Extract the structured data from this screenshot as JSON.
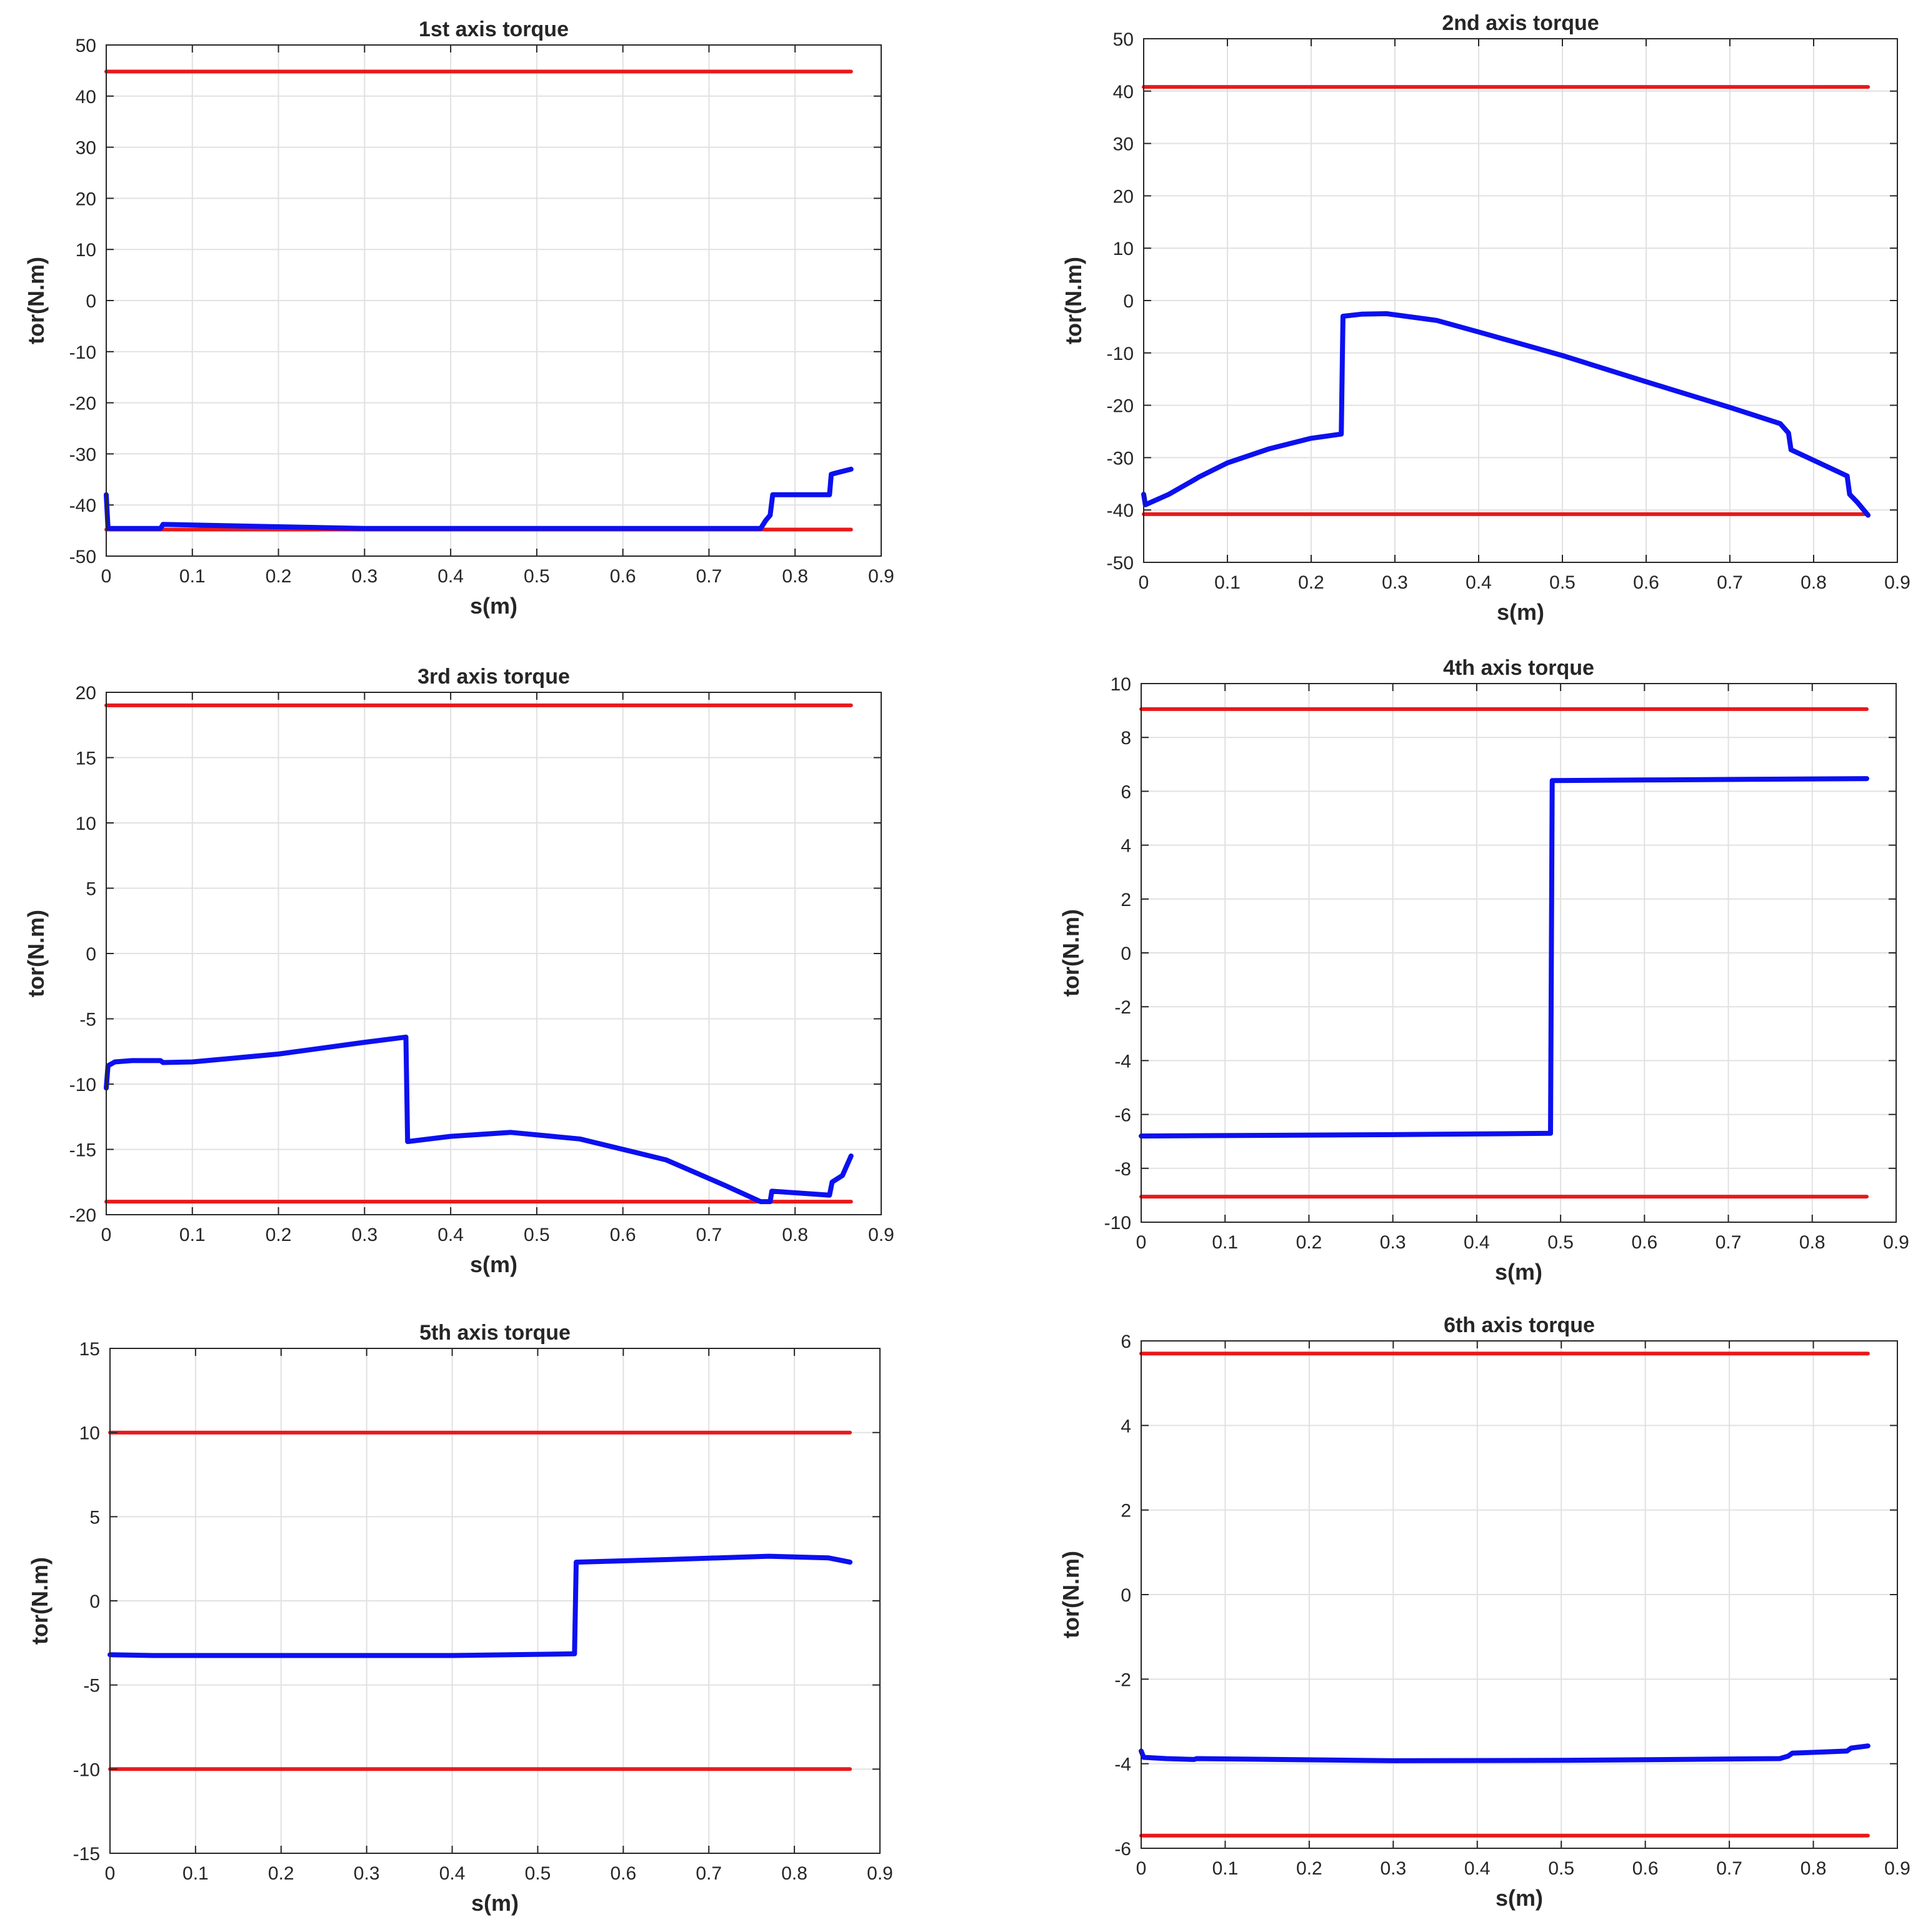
{
  "colors": {
    "limit": "#e8191b",
    "series": "#0c10f0",
    "grid": "#e1e1e1",
    "axis": "#262626"
  },
  "chart_data": [
    {
      "type": "line",
      "title": "1st axis torque",
      "xlabel": "s(m)",
      "ylabel": "tor(N.m)",
      "xlim": [
        0,
        0.9
      ],
      "ylim": [
        -50,
        50
      ],
      "xticks": [
        0,
        0.1,
        0.2,
        0.3,
        0.4,
        0.5,
        0.6,
        0.7,
        0.8,
        0.9
      ],
      "xtick_labels": [
        "0",
        "0.1",
        "0.2",
        "0.3",
        "0.4",
        "0.5",
        "0.6",
        "0.7",
        "0.8",
        "0.9"
      ],
      "yticks": [
        -50,
        -40,
        -30,
        -20,
        -10,
        0,
        10,
        20,
        30,
        40,
        50
      ],
      "ytick_labels": [
        "-50",
        "-40",
        "-30",
        "-20",
        "-10",
        "0",
        "10",
        "20",
        "30",
        "40",
        "50"
      ],
      "grid": true,
      "series": [
        {
          "name": "upper limit",
          "color": "#e8191b",
          "x": [
            0,
            0.865
          ],
          "y": [
            44.8,
            44.8
          ]
        },
        {
          "name": "lower limit",
          "color": "#e8191b",
          "x": [
            0,
            0.865
          ],
          "y": [
            -44.8,
            -44.8
          ]
        },
        {
          "name": "torque",
          "color": "#0c10f0",
          "x": [
            0,
            0.002,
            0.005,
            0.063,
            0.066,
            0.3,
            0.76,
            0.766,
            0.771,
            0.774,
            0.84,
            0.842,
            0.846,
            0.865
          ],
          "y": [
            -38,
            -44.5,
            -44.6,
            -44.6,
            -43.8,
            -44.6,
            -44.6,
            -43,
            -42,
            -38,
            -38,
            -34,
            -33.8,
            -33
          ]
        }
      ]
    },
    {
      "type": "line",
      "title": "2nd axis torque",
      "xlabel": "s(m)",
      "ylabel": "tor(N.m)",
      "xlim": [
        0,
        0.9
      ],
      "ylim": [
        -50,
        50
      ],
      "xticks": [
        0,
        0.1,
        0.2,
        0.3,
        0.4,
        0.5,
        0.6,
        0.7,
        0.8,
        0.9
      ],
      "xtick_labels": [
        "0",
        "0.1",
        "0.2",
        "0.3",
        "0.4",
        "0.5",
        "0.6",
        "0.7",
        "0.8",
        "0.9"
      ],
      "yticks": [
        -50,
        -40,
        -30,
        -20,
        -10,
        0,
        10,
        20,
        30,
        40,
        50
      ],
      "ytick_labels": [
        "-50",
        "-40",
        "-30",
        "-20",
        "-10",
        "0",
        "10",
        "20",
        "30",
        "40",
        "50"
      ],
      "grid": true,
      "series": [
        {
          "name": "upper limit",
          "color": "#e8191b",
          "x": [
            0,
            0.865
          ],
          "y": [
            40.8,
            40.8
          ]
        },
        {
          "name": "lower limit",
          "color": "#e8191b",
          "x": [
            0,
            0.865
          ],
          "y": [
            -40.8,
            -40.8
          ]
        },
        {
          "name": "torque",
          "color": "#0c10f0",
          "x": [
            0,
            0.002,
            0.03,
            0.063,
            0.066,
            0.1,
            0.15,
            0.2,
            0.236,
            0.238,
            0.26,
            0.29,
            0.35,
            0.4,
            0.5,
            0.6,
            0.7,
            0.76,
            0.77,
            0.773,
            0.84,
            0.843,
            0.852,
            0.865
          ],
          "y": [
            -37,
            -39,
            -37,
            -34,
            -33.7,
            -31,
            -28.3,
            -26.3,
            -25.5,
            -3,
            -2.6,
            -2.5,
            -3.8,
            -6,
            -10.5,
            -15.5,
            -20.4,
            -23.5,
            -25.3,
            -28.5,
            -33.5,
            -37,
            -38.5,
            -41
          ]
        }
      ]
    },
    {
      "type": "line",
      "title": "3rd axis torque",
      "xlabel": "s(m)",
      "ylabel": "tor(N.m)",
      "xlim": [
        0,
        0.9
      ],
      "ylim": [
        -20,
        20
      ],
      "xticks": [
        0,
        0.1,
        0.2,
        0.3,
        0.4,
        0.5,
        0.6,
        0.7,
        0.8,
        0.9
      ],
      "xtick_labels": [
        "0",
        "0.1",
        "0.2",
        "0.3",
        "0.4",
        "0.5",
        "0.6",
        "0.7",
        "0.8",
        "0.9"
      ],
      "yticks": [
        -20,
        -15,
        -10,
        -5,
        0,
        5,
        10,
        15,
        20
      ],
      "ytick_labels": [
        "-20",
        "-15",
        "-10",
        "-5",
        "0",
        "5",
        "10",
        "15",
        "20"
      ],
      "grid": true,
      "series": [
        {
          "name": "upper limit",
          "color": "#e8191b",
          "x": [
            0,
            0.865
          ],
          "y": [
            19,
            19
          ]
        },
        {
          "name": "lower limit",
          "color": "#e8191b",
          "x": [
            0,
            0.865
          ],
          "y": [
            -19,
            -19
          ]
        },
        {
          "name": "torque",
          "color": "#0c10f0",
          "x": [
            0,
            0.002,
            0.01,
            0.03,
            0.063,
            0.066,
            0.1,
            0.2,
            0.3,
            0.348,
            0.35,
            0.4,
            0.47,
            0.55,
            0.65,
            0.72,
            0.76,
            0.771,
            0.773,
            0.84,
            0.843,
            0.855,
            0.865
          ],
          "y": [
            -10.3,
            -8.6,
            -8.3,
            -8.2,
            -8.2,
            -8.35,
            -8.3,
            -7.7,
            -6.8,
            -6.4,
            -14.4,
            -14,
            -13.7,
            -14.2,
            -15.8,
            -17.8,
            -19,
            -19,
            -18.2,
            -18.5,
            -17.5,
            -17,
            -15.5
          ]
        }
      ]
    },
    {
      "type": "line",
      "title": "4th axis torque",
      "xlabel": "s(m)",
      "ylabel": "tor(N.m)",
      "xlim": [
        0,
        0.9
      ],
      "ylim": [
        -10,
        10
      ],
      "xticks": [
        0,
        0.1,
        0.2,
        0.3,
        0.4,
        0.5,
        0.6,
        0.7,
        0.8,
        0.9
      ],
      "xtick_labels": [
        "0",
        "0.1",
        "0.2",
        "0.3",
        "0.4",
        "0.5",
        "0.6",
        "0.7",
        "0.8",
        "0.9"
      ],
      "yticks": [
        -10,
        -8,
        -6,
        -4,
        -2,
        0,
        2,
        4,
        6,
        8,
        10
      ],
      "ytick_labels": [
        "-10",
        "-8",
        "-6",
        "-4",
        "-2",
        "0",
        "2",
        "4",
        "6",
        "8",
        "10"
      ],
      "grid": true,
      "series": [
        {
          "name": "upper limit",
          "color": "#e8191b",
          "x": [
            0,
            0.865
          ],
          "y": [
            9.05,
            9.05
          ]
        },
        {
          "name": "lower limit",
          "color": "#e8191b",
          "x": [
            0,
            0.865
          ],
          "y": [
            -9.05,
            -9.05
          ]
        },
        {
          "name": "torque",
          "color": "#0c10f0",
          "x": [
            0,
            0.3,
            0.488,
            0.49,
            0.6,
            0.865
          ],
          "y": [
            -6.8,
            -6.75,
            -6.7,
            6.4,
            6.42,
            6.47
          ]
        }
      ]
    },
    {
      "type": "line",
      "title": "5th axis torque",
      "xlabel": "s(m)",
      "ylabel": "tor(N.m)",
      "xlim": [
        0,
        0.9
      ],
      "ylim": [
        -15,
        15
      ],
      "xticks": [
        0,
        0.1,
        0.2,
        0.3,
        0.4,
        0.5,
        0.6,
        0.7,
        0.8,
        0.9
      ],
      "xtick_labels": [
        "0",
        "0.1",
        "0.2",
        "0.3",
        "0.4",
        "0.5",
        "0.6",
        "0.7",
        "0.8",
        "0.9"
      ],
      "yticks": [
        -15,
        -10,
        -5,
        0,
        5,
        10,
        15
      ],
      "ytick_labels": [
        "-15",
        "-10",
        "-5",
        "0",
        "5",
        "10",
        "15"
      ],
      "grid": true,
      "series": [
        {
          "name": "upper limit",
          "color": "#e8191b",
          "x": [
            0,
            0.865
          ],
          "y": [
            10,
            10
          ]
        },
        {
          "name": "lower limit",
          "color": "#e8191b",
          "x": [
            0,
            0.865
          ],
          "y": [
            -10,
            -10
          ]
        },
        {
          "name": "torque",
          "color": "#0c10f0",
          "x": [
            0,
            0.05,
            0.2,
            0.4,
            0.543,
            0.545,
            0.65,
            0.77,
            0.84,
            0.865
          ],
          "y": [
            -3.2,
            -3.25,
            -3.25,
            -3.25,
            -3.15,
            2.3,
            2.45,
            2.65,
            2.55,
            2.3
          ]
        }
      ]
    },
    {
      "type": "line",
      "title": "6th axis torque",
      "xlabel": "s(m)",
      "ylabel": "tor(N.m)",
      "xlim": [
        0,
        0.9
      ],
      "ylim": [
        -6,
        6
      ],
      "xticks": [
        0,
        0.1,
        0.2,
        0.3,
        0.4,
        0.5,
        0.6,
        0.7,
        0.8,
        0.9
      ],
      "xtick_labels": [
        "0",
        "0.1",
        "0.2",
        "0.3",
        "0.4",
        "0.5",
        "0.6",
        "0.7",
        "0.8",
        "0.9"
      ],
      "yticks": [
        -6,
        -4,
        -2,
        0,
        2,
        4,
        6
      ],
      "ytick_labels": [
        "-6",
        "-4",
        "-2",
        "0",
        "2",
        "4",
        "6"
      ],
      "grid": true,
      "series": [
        {
          "name": "upper limit",
          "color": "#e8191b",
          "x": [
            0,
            0.865
          ],
          "y": [
            5.7,
            5.7
          ]
        },
        {
          "name": "lower limit",
          "color": "#e8191b",
          "x": [
            0,
            0.865
          ],
          "y": [
            -5.7,
            -5.7
          ]
        },
        {
          "name": "torque",
          "color": "#0c10f0",
          "x": [
            0,
            0.003,
            0.03,
            0.063,
            0.066,
            0.3,
            0.5,
            0.76,
            0.77,
            0.775,
            0.84,
            0.845,
            0.865
          ],
          "y": [
            -3.7,
            -3.85,
            -3.88,
            -3.9,
            -3.88,
            -3.93,
            -3.92,
            -3.88,
            -3.82,
            -3.75,
            -3.7,
            -3.63,
            -3.58
          ]
        }
      ]
    }
  ]
}
